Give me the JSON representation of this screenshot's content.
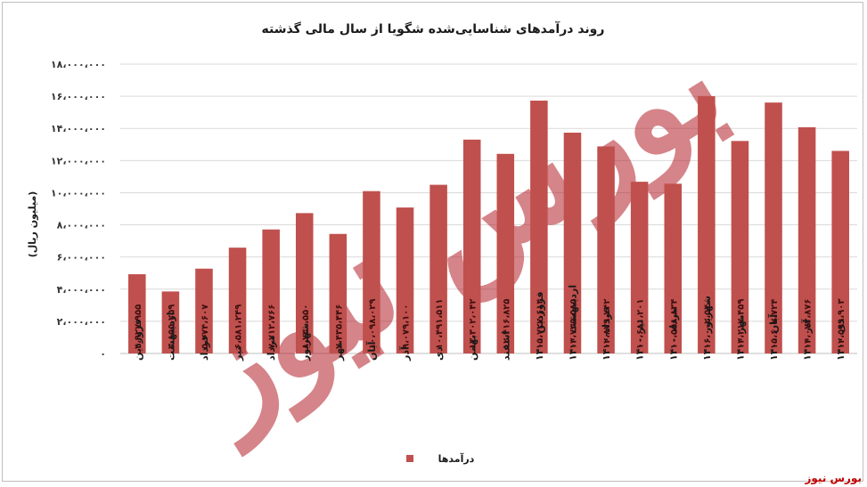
{
  "chart_data": {
    "type": "bar",
    "title": "روند درآمدهای شناسایی‌شده شگویا از سال مالی گذشته",
    "ylabel": "(میلیون ریال)",
    "xlabel": "",
    "ylim": [
      0,
      18000000
    ],
    "yticks": [
      0,
      2000000,
      4000000,
      6000000,
      8000000,
      10000000,
      12000000,
      14000000,
      16000000,
      18000000
    ],
    "ytick_labels": [
      "۰",
      "۲،۰۰۰،۰۰۰",
      "۴،۰۰۰،۰۰۰",
      "۶،۰۰۰،۰۰۰",
      "۸،۰۰۰،۰۰۰",
      "۱۰،۰۰۰،۰۰۰",
      "۱۲،۰۰۰،۰۰۰",
      "۱۴،۰۰۰،۰۰۰",
      "۱۶،۰۰۰،۰۰۰",
      "۱۸،۰۰۰،۰۰۰"
    ],
    "grid": true,
    "legend_position": "bottom",
    "categories": [
      "فروردین",
      "اردیبهشت",
      "خرداد",
      "تیر",
      "مرداد",
      "شهریور",
      "مهر",
      "آبان",
      "آذر",
      "دی",
      "بهمن",
      "اسفند",
      "فروردین ۱۴۰۰",
      "اردیبهشت ۱۴۰۰",
      "خرداد-۱۴۰۰",
      "تیر ۱۴۰۰",
      "مرداد ۱۴۰۰",
      "شهریور ۱۴۰۰",
      "مهر ۱۴۰۰",
      "آبان ۱۴۰۰",
      "آذر ۱۴۰۰",
      "دی ۱۴۰۰"
    ],
    "series": [
      {
        "name": "درآمدها",
        "color": "#c0504d",
        "values": [
          4927955,
          3855259,
          5274607,
          6581249,
          7712766,
          8730550,
          7435446,
          10098029,
          9079100,
          10491511,
          13302042,
          12416825,
          15727614,
          13735585,
          12879742,
          10681201,
          10558834,
          16002540,
          13217459,
          15607724,
          14072876,
          12599903
        ],
        "labels": [
          "۴،۹۲۷،۹۵۵",
          "۳،۸۵۵،۲۵۹",
          "۵،۲۷۴،۶۰۷",
          "۶،۵۸۱،۲۴۹",
          "۷،۷۱۲،۷۶۶",
          "۸،۷۳۰،۵۵۰",
          "۷،۴۳۵،۴۴۶",
          "۱۰،۰۹۸،۰۲۹",
          "۹،۰۷۹،۱۰۰",
          "۱۰،۴۹۱،۵۱۱",
          "۱۳،۳۰۲،۰۴۲",
          "۱۲،۴۱۶،۸۲۵",
          "۱۵،۷۲۷،۶۱۴",
          "۱۳،۷۳۵،۵۸۵",
          "۱۲،۸۷۹،۷۴۲",
          "۱۰،۶۸۱،۲۰۱",
          "۱۰،۵۵۸،۸۳۴",
          "۱۶،۰۰۲،۵۴۰",
          "۱۳،۲۱۷،۴۵۹",
          "۱۵،۶۰۷،۷۲۴",
          "۱۴،۰۷۲،۸۷۶",
          "۱۲،۵۹۹،۹۰۳"
        ]
      }
    ]
  },
  "watermark": "بورس نیوز",
  "brand": "بورس نیوز"
}
